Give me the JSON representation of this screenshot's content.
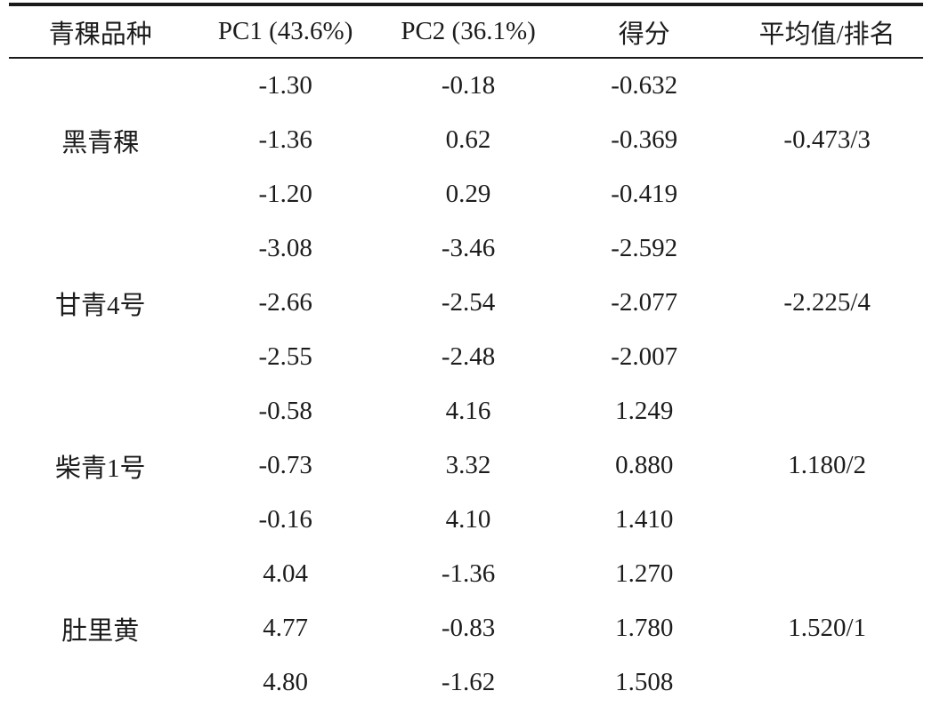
{
  "table": {
    "columns": [
      "青稞品种",
      "PC1 (43.6%)",
      "PC2 (36.1%)",
      "得分",
      "平均值/排名"
    ],
    "groups": [
      {
        "variety": "黑青稞",
        "rows": [
          [
            "-1.30",
            "-0.18",
            "-0.632"
          ],
          [
            "-1.36",
            "0.62",
            "-0.369"
          ],
          [
            "-1.20",
            "0.29",
            "-0.419"
          ]
        ],
        "average_rank": "-0.473/3"
      },
      {
        "variety": "甘青4号",
        "rows": [
          [
            "-3.08",
            "-3.46",
            "-2.592"
          ],
          [
            "-2.66",
            "-2.54",
            "-2.077"
          ],
          [
            "-2.55",
            "-2.48",
            "-2.007"
          ]
        ],
        "average_rank": "-2.225/4"
      },
      {
        "variety": "柴青1号",
        "rows": [
          [
            "-0.58",
            "4.16",
            "1.249"
          ],
          [
            "-0.73",
            "3.32",
            "0.880"
          ],
          [
            "-0.16",
            "4.10",
            "1.410"
          ]
        ],
        "average_rank": "1.180/2"
      },
      {
        "variety": "肚里黄",
        "rows": [
          [
            "4.04",
            "-1.36",
            "1.270"
          ],
          [
            "4.77",
            "-0.83",
            "1.780"
          ],
          [
            "4.80",
            "-1.62",
            "1.508"
          ]
        ],
        "average_rank": "1.520/1"
      }
    ],
    "colors": {
      "text": "#1c1c1c",
      "rule": "#1a1a1a",
      "background": "#ffffff"
    }
  }
}
